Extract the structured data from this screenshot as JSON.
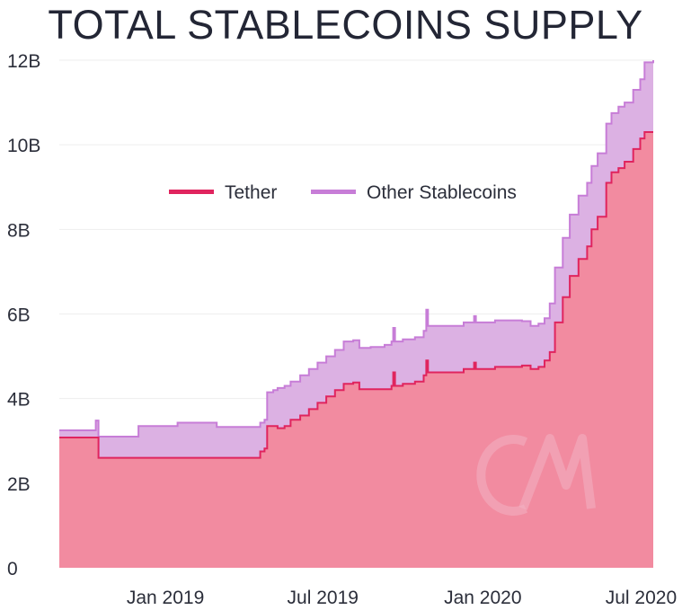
{
  "chart_data": {
    "type": "area",
    "title": "TOTAL STABLECOINS SUPPLY",
    "xlabel": "",
    "ylabel": "",
    "stacked": true,
    "xlim": [
      "2018-09-01",
      "2020-07-15"
    ],
    "ylim": [
      0,
      12
    ],
    "y_unit": "B",
    "y_ticks": [
      {
        "value": 0,
        "label": "0"
      },
      {
        "value": 2,
        "label": "2B"
      },
      {
        "value": 4,
        "label": "4B"
      },
      {
        "value": 6,
        "label": "6B"
      },
      {
        "value": 8,
        "label": "8B"
      },
      {
        "value": 10,
        "label": "10B"
      },
      {
        "value": 12,
        "label": "12B"
      }
    ],
    "x_ticks": [
      {
        "value": "2019-01-01",
        "label": "Jan 2019"
      },
      {
        "value": "2019-07-01",
        "label": "Jul 2019"
      },
      {
        "value": "2020-01-01",
        "label": "Jan 2020"
      },
      {
        "value": "2020-07-01",
        "label": "Jul 2020"
      }
    ],
    "grid": true,
    "legend_position": "top-center",
    "colors": {
      "tether_line": "#e0245e",
      "tether_fill": "#f28ba0",
      "other_line": "#c77dd7",
      "other_fill": "#dcb1e3",
      "grid": "#eeeeee",
      "watermark": "#f3b3c2"
    },
    "series": [
      {
        "name": "Tether",
        "values": [
          [
            "2018-09-01",
            3.08
          ],
          [
            "2018-10-13",
            3.08
          ],
          [
            "2018-10-16",
            2.6
          ],
          [
            "2018-12-01",
            2.6
          ],
          [
            "2019-01-15",
            2.6
          ],
          [
            "2019-03-01",
            2.6
          ],
          [
            "2019-04-10",
            2.6
          ],
          [
            "2019-04-20",
            2.75
          ],
          [
            "2019-04-25",
            2.82
          ],
          [
            "2019-04-28",
            3.35
          ],
          [
            "2019-05-05",
            3.35
          ],
          [
            "2019-05-10",
            3.3
          ],
          [
            "2019-05-18",
            3.35
          ],
          [
            "2019-05-25",
            3.5
          ],
          [
            "2019-06-05",
            3.6
          ],
          [
            "2019-06-15",
            3.75
          ],
          [
            "2019-06-25",
            3.9
          ],
          [
            "2019-07-05",
            4.05
          ],
          [
            "2019-07-15",
            4.2
          ],
          [
            "2019-07-25",
            4.35
          ],
          [
            "2019-08-05",
            4.38
          ],
          [
            "2019-08-12",
            4.22
          ],
          [
            "2019-08-25",
            4.22
          ],
          [
            "2019-09-10",
            4.22
          ],
          [
            "2019-09-18",
            4.3
          ],
          [
            "2019-09-20",
            4.62
          ],
          [
            "2019-09-22",
            4.3
          ],
          [
            "2019-10-01",
            4.35
          ],
          [
            "2019-10-15",
            4.4
          ],
          [
            "2019-10-25",
            4.55
          ],
          [
            "2019-10-28",
            4.9
          ],
          [
            "2019-10-30",
            4.62
          ],
          [
            "2019-11-15",
            4.62
          ],
          [
            "2019-12-10",
            4.7
          ],
          [
            "2019-12-20",
            4.7
          ],
          [
            "2019-12-22",
            4.85
          ],
          [
            "2019-12-24",
            4.7
          ],
          [
            "2020-01-15",
            4.75
          ],
          [
            "2020-02-15",
            4.78
          ],
          [
            "2020-02-25",
            4.7
          ],
          [
            "2020-03-05",
            4.75
          ],
          [
            "2020-03-12",
            4.9
          ],
          [
            "2020-03-18",
            5.1
          ],
          [
            "2020-03-24",
            5.8
          ],
          [
            "2020-04-02",
            6.4
          ],
          [
            "2020-04-10",
            6.9
          ],
          [
            "2020-04-20",
            7.3
          ],
          [
            "2020-04-30",
            7.6
          ],
          [
            "2020-05-05",
            8.0
          ],
          [
            "2020-05-12",
            8.3
          ],
          [
            "2020-05-22",
            9.1
          ],
          [
            "2020-05-28",
            9.35
          ],
          [
            "2020-06-05",
            9.45
          ],
          [
            "2020-06-12",
            9.6
          ],
          [
            "2020-06-22",
            9.9
          ],
          [
            "2020-06-30",
            10.15
          ],
          [
            "2020-07-05",
            10.3
          ],
          [
            "2020-07-15",
            10.3
          ]
        ]
      },
      {
        "name": "Other Stablecoins",
        "values": [
          [
            "2018-09-01",
            0.17
          ],
          [
            "2018-10-13",
            0.4
          ],
          [
            "2018-10-16",
            0.5
          ],
          [
            "2018-12-01",
            0.75
          ],
          [
            "2019-01-15",
            0.83
          ],
          [
            "2019-03-01",
            0.73
          ],
          [
            "2019-04-10",
            0.73
          ],
          [
            "2019-04-20",
            0.68
          ],
          [
            "2019-04-25",
            0.68
          ],
          [
            "2019-04-28",
            0.8
          ],
          [
            "2019-05-05",
            0.85
          ],
          [
            "2019-05-10",
            0.95
          ],
          [
            "2019-05-18",
            0.95
          ],
          [
            "2019-05-25",
            0.9
          ],
          [
            "2019-06-05",
            0.95
          ],
          [
            "2019-06-15",
            0.95
          ],
          [
            "2019-06-25",
            0.95
          ],
          [
            "2019-07-05",
            0.95
          ],
          [
            "2019-07-15",
            0.95
          ],
          [
            "2019-07-25",
            1.0
          ],
          [
            "2019-08-05",
            1.0
          ],
          [
            "2019-08-12",
            0.98
          ],
          [
            "2019-08-25",
            1.0
          ],
          [
            "2019-09-10",
            1.05
          ],
          [
            "2019-09-18",
            1.05
          ],
          [
            "2019-09-20",
            1.05
          ],
          [
            "2019-09-22",
            1.05
          ],
          [
            "2019-10-01",
            1.05
          ],
          [
            "2019-10-15",
            1.05
          ],
          [
            "2019-10-25",
            1.05
          ],
          [
            "2019-10-28",
            1.2
          ],
          [
            "2019-10-30",
            1.1
          ],
          [
            "2019-11-15",
            1.1
          ],
          [
            "2019-12-10",
            1.1
          ],
          [
            "2019-12-20",
            1.1
          ],
          [
            "2019-12-22",
            1.1
          ],
          [
            "2019-12-24",
            1.1
          ],
          [
            "2020-01-15",
            1.1
          ],
          [
            "2020-02-15",
            1.05
          ],
          [
            "2020-02-25",
            1.02
          ],
          [
            "2020-03-05",
            1.02
          ],
          [
            "2020-03-12",
            1.0
          ],
          [
            "2020-03-18",
            1.15
          ],
          [
            "2020-03-24",
            1.3
          ],
          [
            "2020-04-02",
            1.4
          ],
          [
            "2020-04-10",
            1.45
          ],
          [
            "2020-04-20",
            1.5
          ],
          [
            "2020-04-30",
            1.5
          ],
          [
            "2020-05-05",
            1.5
          ],
          [
            "2020-05-12",
            1.5
          ],
          [
            "2020-05-22",
            1.4
          ],
          [
            "2020-05-28",
            1.4
          ],
          [
            "2020-06-05",
            1.45
          ],
          [
            "2020-06-12",
            1.4
          ],
          [
            "2020-06-22",
            1.4
          ],
          [
            "2020-06-30",
            1.4
          ],
          [
            "2020-07-05",
            1.65
          ],
          [
            "2020-07-15",
            1.7
          ]
        ]
      }
    ]
  }
}
